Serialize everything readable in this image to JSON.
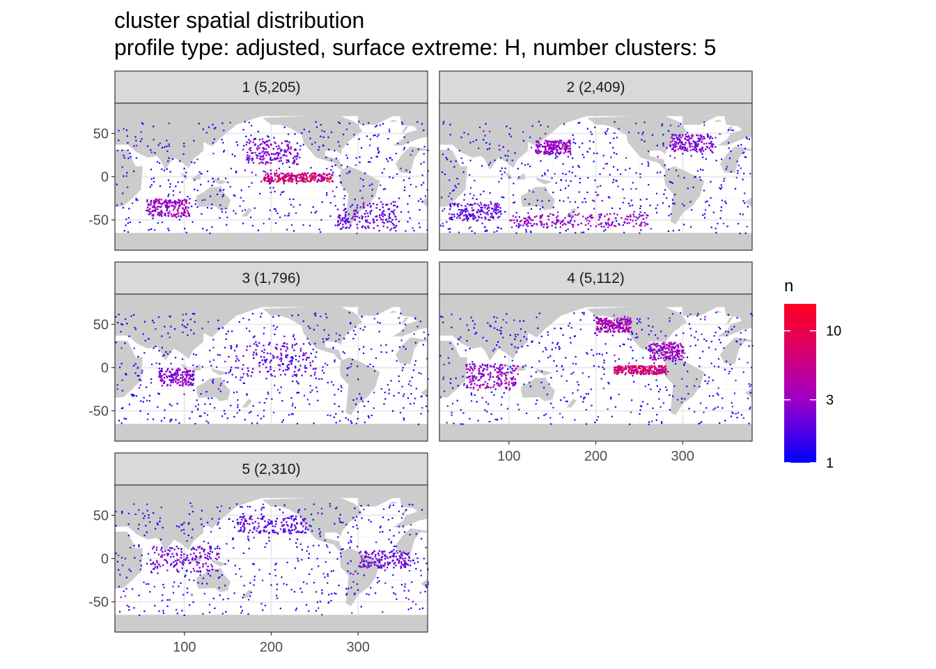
{
  "chart_data": {
    "type": "heatmap",
    "title": "cluster spatial distribution",
    "subtitle": "profile type: adjusted, surface extreme: H, number clusters: 5",
    "xlim": [
      20,
      380
    ],
    "ylim": [
      -85,
      85
    ],
    "x_ticks": [
      100,
      200,
      300
    ],
    "y_ticks": [
      50,
      0,
      -50
    ],
    "x_tick_labels": [
      "100",
      "200",
      "300"
    ],
    "y_tick_labels": [
      "50",
      "0",
      "-50"
    ],
    "grid": true,
    "panels": [
      {
        "cluster": 1,
        "label": "1 (5,205)",
        "hotspots": [
          [
            230,
            0,
            40,
            5,
            0.85
          ],
          [
            200,
            30,
            30,
            15,
            0.4
          ],
          [
            80,
            -35,
            25,
            10,
            0.5
          ],
          [
            310,
            -45,
            35,
            15,
            0.3
          ]
        ]
      },
      {
        "cluster": 2,
        "label": "2 (2,409)",
        "hotspots": [
          [
            180,
            -50,
            80,
            8,
            0.5
          ],
          [
            150,
            35,
            20,
            8,
            0.5
          ],
          [
            310,
            40,
            25,
            10,
            0.4
          ],
          [
            60,
            -40,
            30,
            10,
            0.3
          ]
        ]
      },
      {
        "cluster": 3,
        "label": "3 (1,796)",
        "hotspots": [
          [
            90,
            -10,
            20,
            10,
            0.4
          ],
          [
            200,
            10,
            50,
            20,
            0.3
          ]
        ]
      },
      {
        "cluster": 4,
        "label": "4 (5,112)",
        "hotspots": [
          [
            250,
            -2,
            30,
            5,
            0.9
          ],
          [
            220,
            50,
            20,
            8,
            0.6
          ],
          [
            80,
            -10,
            30,
            15,
            0.5
          ],
          [
            280,
            20,
            20,
            10,
            0.5
          ]
        ]
      },
      {
        "cluster": 5,
        "label": "5 (2,310)",
        "hotspots": [
          [
            100,
            0,
            40,
            15,
            0.35
          ],
          [
            330,
            0,
            30,
            10,
            0.35
          ],
          [
            200,
            40,
            40,
            10,
            0.3
          ]
        ]
      }
    ],
    "legend": {
      "title": "n",
      "scale": "log",
      "range": [
        1,
        16
      ],
      "breaks": [
        1,
        3,
        10
      ],
      "labels": [
        "1",
        "3",
        "10"
      ],
      "colors": {
        "low": "#0000ff",
        "mid": "#a000c8",
        "high": "#ff0020"
      },
      "placement": "right"
    }
  },
  "colors": {
    "land": "#cccccc",
    "strip_bg": "#d9d9d9",
    "grid_major": "#ebebeb",
    "grid_minor": "#f5f5f5",
    "panel_border": "#333333"
  }
}
